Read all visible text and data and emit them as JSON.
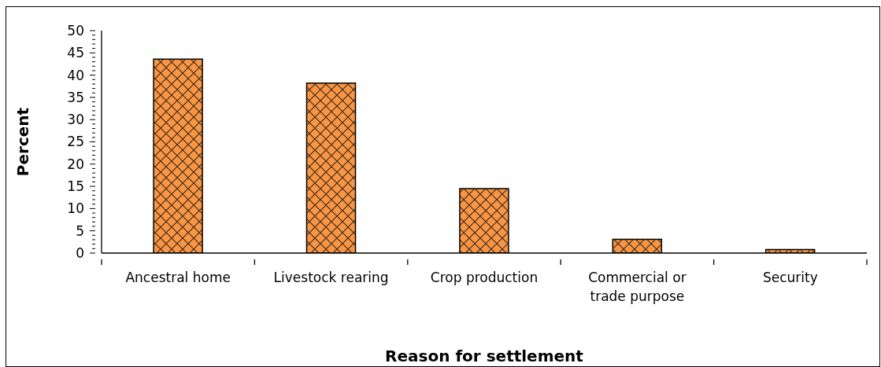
{
  "chart_data": {
    "type": "bar",
    "xlabel": "Reason for settlement",
    "ylabel": "Percent",
    "categories": [
      "Ancestral home",
      "Livestock rearing",
      "Crop production",
      "Commercial or trade purpose",
      "Security"
    ],
    "values": [
      43.6,
      38.2,
      14.5,
      3.1,
      0.8
    ],
    "color": "#f79646",
    "ylim": [
      0,
      50
    ],
    "yticks": [
      0,
      {
        "value": 1,
        "label": null
      },
      {
        "value": 2,
        "label": null
      },
      {
        "value": 3,
        "label": null
      },
      {
        "value": 4,
        "label": null
      },
      5,
      {
        "value": 6,
        "label": null
      },
      {
        "value": 7,
        "label": null
      },
      {
        "value": 8,
        "label": null
      },
      {
        "value": 9,
        "label": null
      },
      10,
      {
        "value": 11,
        "label": null
      },
      {
        "value": 12,
        "label": null
      },
      {
        "value": 13,
        "label": null
      },
      {
        "value": 14,
        "label": null
      },
      15,
      {
        "value": 16,
        "label": null
      },
      {
        "value": 17,
        "label": null
      },
      {
        "value": 18,
        "label": null
      },
      {
        "value": 19,
        "label": null
      },
      20,
      {
        "value": 21,
        "label": null
      },
      {
        "value": 22,
        "label": null
      },
      {
        "value": 23,
        "label": null
      },
      {
        "value": 24,
        "label": null
      },
      25,
      {
        "value": 26,
        "label": null
      },
      {
        "value": 27,
        "label": null
      },
      {
        "value": 28,
        "label": null
      },
      {
        "value": 29,
        "label": null
      },
      30,
      {
        "value": 31,
        "label": null
      },
      {
        "value": 32,
        "label": null
      },
      {
        "value": 33,
        "label": null
      },
      {
        "value": 34,
        "label": null
      },
      35,
      {
        "value": 36,
        "label": null
      },
      {
        "value": 37,
        "label": null
      },
      {
        "value": 38,
        "label": null
      },
      {
        "value": 39,
        "label": null
      },
      40,
      {
        "value": 41,
        "label": null
      },
      {
        "value": 42,
        "label": null
      },
      {
        "value": 43,
        "label": null
      },
      {
        "value": 44,
        "label": null
      },
      45,
      {
        "value": 46,
        "label": null
      },
      {
        "value": 47,
        "label": null
      },
      {
        "value": 48,
        "label": null
      },
      {
        "value": 49,
        "label": null
      },
      50
    ]
  }
}
